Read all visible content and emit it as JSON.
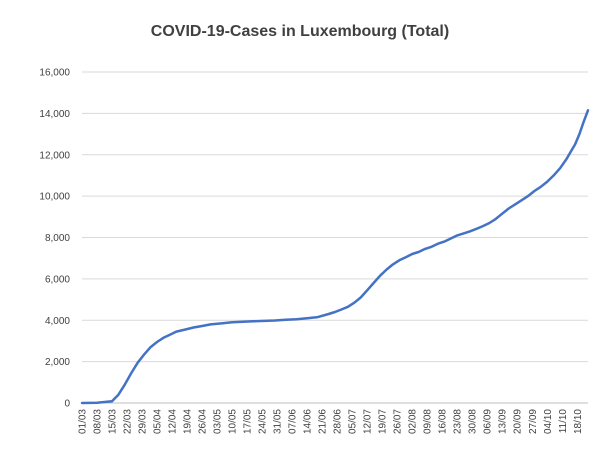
{
  "chart_data": {
    "type": "line",
    "title": "COVID-19-Cases in Luxembourg (Total)",
    "xlabel": "",
    "ylabel": "",
    "ylim": [
      0,
      16000
    ],
    "y_ticks": [
      0,
      2000,
      4000,
      6000,
      8000,
      10000,
      12000,
      14000,
      16000
    ],
    "y_tick_labels": [
      "0",
      "2,000",
      "4,000",
      "6,000",
      "8,000",
      "10,000",
      "12,000",
      "14,000",
      "16,000"
    ],
    "x_tick_labels": [
      "01/03",
      "08/03",
      "15/03",
      "22/03",
      "29/03",
      "05/04",
      "12/04",
      "19/04",
      "26/04",
      "03/05",
      "10/05",
      "17/05",
      "24/05",
      "31/05",
      "07/06",
      "14/06",
      "21/06",
      "28/06",
      "05/07",
      "12/07",
      "19/07",
      "26/07",
      "02/08",
      "09/08",
      "16/08",
      "23/08",
      "30/08",
      "06/09",
      "13/09",
      "20/09",
      "27/09",
      "04/10",
      "11/10",
      "18/10"
    ],
    "x_day_range": [
      0,
      236
    ],
    "grid": true,
    "legend": "none",
    "line_color": "#4472c4",
    "series": [
      {
        "x": [
          0,
          7,
          14,
          17,
          20,
          23,
          26,
          29,
          32,
          35,
          38,
          41,
          44,
          48,
          52,
          56,
          60,
          65,
          70,
          75,
          80,
          85,
          90,
          95,
          100,
          105,
          110,
          115,
          118,
          121,
          124,
          127,
          130,
          133,
          136,
          139,
          142,
          145,
          148,
          151,
          154,
          157,
          160,
          163,
          166,
          169,
          172,
          175,
          178,
          181,
          184,
          187,
          190,
          193,
          196,
          199,
          202,
          205,
          208,
          211,
          214,
          217,
          220,
          223,
          226,
          228,
          230,
          232,
          234,
          236
        ],
        "y": [
          0,
          10,
          80,
          400,
          900,
          1450,
          1950,
          2350,
          2700,
          2950,
          3150,
          3300,
          3450,
          3550,
          3650,
          3720,
          3800,
          3850,
          3900,
          3930,
          3950,
          3970,
          3990,
          4020,
          4050,
          4100,
          4150,
          4300,
          4400,
          4520,
          4650,
          4850,
          5100,
          5450,
          5800,
          6150,
          6450,
          6700,
          6900,
          7050,
          7200,
          7300,
          7450,
          7550,
          7700,
          7800,
          7950,
          8100,
          8200,
          8300,
          8420,
          8550,
          8700,
          8900,
          9150,
          9400,
          9600,
          9800,
          10000,
          10250,
          10450,
          10700,
          11000,
          11350,
          11800,
          12150,
          12500,
          13000,
          13600,
          14150
        ]
      }
    ]
  }
}
